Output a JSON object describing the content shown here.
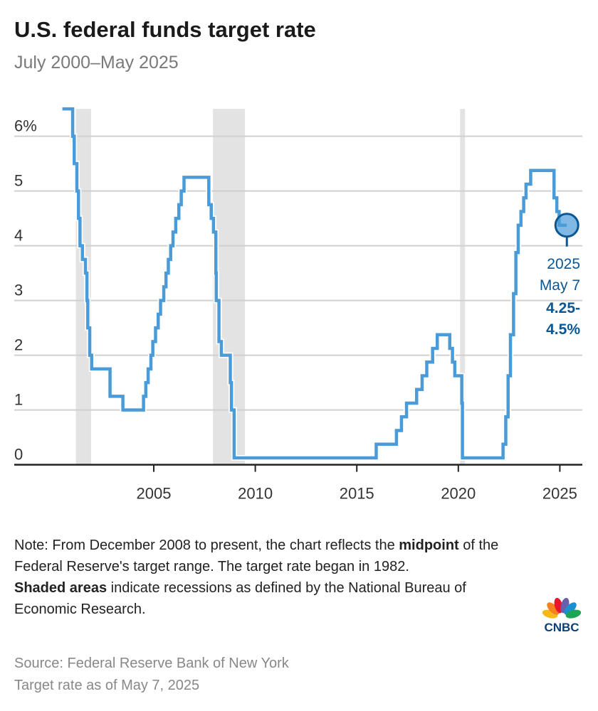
{
  "title": "U.S. federal funds target rate",
  "subtitle": "July 2000–May 2025",
  "chart_data": {
    "type": "line",
    "step": true,
    "title": "U.S. federal funds target rate",
    "subtitle": "July 2000–May 2025",
    "xlabel": "",
    "ylabel": "",
    "xlim": [
      "2000-01-01",
      "2026-03-01"
    ],
    "ylim": [
      0,
      6.5
    ],
    "x_ticks": [
      "2005",
      "2010",
      "2015",
      "2020",
      "2025"
    ],
    "y_ticks": [
      {
        "value": 0,
        "label": "0"
      },
      {
        "value": 1,
        "label": "1"
      },
      {
        "value": 2,
        "label": "2"
      },
      {
        "value": 3,
        "label": "3"
      },
      {
        "value": 4,
        "label": "4"
      },
      {
        "value": 5,
        "label": "5"
      },
      {
        "value": 6,
        "label": "6%"
      }
    ],
    "grid": "horizontal",
    "line_color": "#4a9bd8",
    "recession_color": "#e3e3e3",
    "recessions": [
      [
        "2001-03-01",
        "2001-11-30"
      ],
      [
        "2007-12-01",
        "2009-06-30"
      ],
      [
        "2020-02-01",
        "2020-04-30"
      ]
    ],
    "series": [
      {
        "points": [
          [
            "2000-07-01",
            6.5
          ],
          [
            "2001-01-03",
            6.0
          ],
          [
            "2001-01-31",
            5.5
          ],
          [
            "2001-03-20",
            5.0
          ],
          [
            "2001-04-18",
            4.5
          ],
          [
            "2001-05-15",
            4.0
          ],
          [
            "2001-06-27",
            3.75
          ],
          [
            "2001-08-21",
            3.5
          ],
          [
            "2001-09-17",
            3.0
          ],
          [
            "2001-10-02",
            2.5
          ],
          [
            "2001-11-06",
            2.0
          ],
          [
            "2001-12-11",
            1.75
          ],
          [
            "2002-11-06",
            1.25
          ],
          [
            "2003-06-25",
            1.0
          ],
          [
            "2004-06-30",
            1.25
          ],
          [
            "2004-08-10",
            1.5
          ],
          [
            "2004-09-21",
            1.75
          ],
          [
            "2004-11-10",
            2.0
          ],
          [
            "2004-12-14",
            2.25
          ],
          [
            "2005-02-02",
            2.5
          ],
          [
            "2005-03-22",
            2.75
          ],
          [
            "2005-05-03",
            3.0
          ],
          [
            "2005-06-30",
            3.25
          ],
          [
            "2005-08-09",
            3.5
          ],
          [
            "2005-09-20",
            3.75
          ],
          [
            "2005-11-01",
            4.0
          ],
          [
            "2005-12-13",
            4.25
          ],
          [
            "2006-01-31",
            4.5
          ],
          [
            "2006-03-28",
            4.75
          ],
          [
            "2006-05-10",
            5.0
          ],
          [
            "2006-06-29",
            5.25
          ],
          [
            "2007-09-18",
            4.75
          ],
          [
            "2007-10-31",
            4.5
          ],
          [
            "2007-12-11",
            4.25
          ],
          [
            "2008-01-22",
            3.5
          ],
          [
            "2008-01-30",
            3.0
          ],
          [
            "2008-03-18",
            2.25
          ],
          [
            "2008-04-30",
            2.0
          ],
          [
            "2008-10-08",
            1.5
          ],
          [
            "2008-10-29",
            1.0
          ],
          [
            "2008-12-16",
            0.125
          ],
          [
            "2015-12-16",
            0.375
          ],
          [
            "2016-12-14",
            0.625
          ],
          [
            "2017-03-15",
            0.875
          ],
          [
            "2017-06-14",
            1.125
          ],
          [
            "2017-12-13",
            1.375
          ],
          [
            "2018-03-21",
            1.625
          ],
          [
            "2018-06-13",
            1.875
          ],
          [
            "2018-09-26",
            2.125
          ],
          [
            "2018-12-19",
            2.375
          ],
          [
            "2019-07-31",
            2.125
          ],
          [
            "2019-09-18",
            1.875
          ],
          [
            "2019-10-30",
            1.625
          ],
          [
            "2020-03-03",
            1.125
          ],
          [
            "2020-03-15",
            0.125
          ],
          [
            "2022-03-16",
            0.375
          ],
          [
            "2022-05-04",
            0.875
          ],
          [
            "2022-06-15",
            1.625
          ],
          [
            "2022-07-27",
            2.375
          ],
          [
            "2022-09-21",
            3.125
          ],
          [
            "2022-11-02",
            3.875
          ],
          [
            "2022-12-14",
            4.375
          ],
          [
            "2023-02-01",
            4.625
          ],
          [
            "2023-03-22",
            4.875
          ],
          [
            "2023-05-03",
            5.125
          ],
          [
            "2023-07-26",
            5.375
          ],
          [
            "2024-09-18",
            4.875
          ],
          [
            "2024-11-07",
            4.625
          ],
          [
            "2024-12-18",
            4.375
          ],
          [
            "2025-05-07",
            4.375
          ]
        ]
      }
    ],
    "annotation": {
      "date": "2025-05-07",
      "value": 4.375,
      "line1": "2025",
      "line2": "May 7",
      "line3": "4.25-",
      "line4": "4.5%",
      "color": "#0b5794"
    }
  },
  "note": {
    "part1": "Note: From December 2008 to present, the chart reflects the ",
    "bold1": "midpoint",
    "part2": " of the Federal Reserve's target range. The target rate began in 1982.",
    "bold2": "Shaded areas",
    "part3": " indicate recessions as defined by the National Bureau of Economic Research."
  },
  "source": {
    "line1": "Source: Federal Reserve Bank of New York",
    "line2": "Target rate as of May 7, 2025"
  },
  "logo": {
    "text": "CNBC",
    "colors": [
      "#f6b918",
      "#f48221",
      "#e8152d",
      "#6b5fab",
      "#1b8fd0",
      "#1ea552"
    ]
  }
}
